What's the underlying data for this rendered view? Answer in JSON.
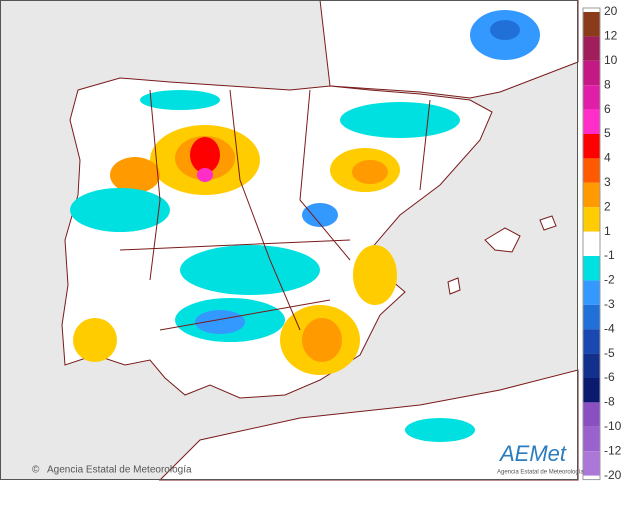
{
  "legend": {
    "labels": [
      20,
      12,
      10,
      8,
      6,
      5,
      4,
      3,
      2,
      1,
      -1,
      -2,
      -3,
      -4,
      -5,
      -6,
      -8,
      -10,
      -12,
      -20
    ],
    "colors": [
      "#8b3a1a",
      "#a01e5a",
      "#c41884",
      "#e01ea8",
      "#ff2ec8",
      "#ff0000",
      "#ff5a00",
      "#ff9a00",
      "#ffcc00",
      "#ffffff",
      "#00e0e0",
      "#3399ff",
      "#2070d8",
      "#1848b0",
      "#12308c",
      "#0a1a6e",
      "#8a4fc0",
      "#9a62cc",
      "#ab78da"
    ]
  },
  "footer": {
    "copyright": "Agencia Estatal de Meteorología",
    "logo": "AEMet",
    "logo_caption": "Agencia Estatal de Meteorología"
  }
}
